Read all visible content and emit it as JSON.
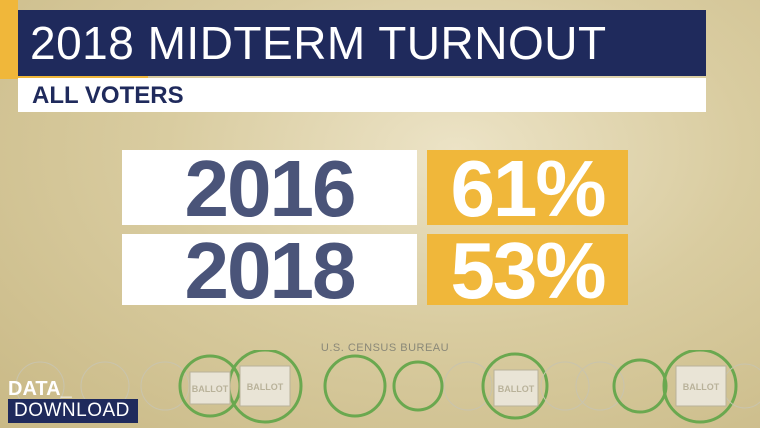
{
  "header": {
    "title": "2018 MIDTERM TURNOUT",
    "subtitle": "ALL VOTERS"
  },
  "table": {
    "rows": [
      [
        "2016",
        "61%"
      ],
      [
        "2018",
        "53%"
      ]
    ]
  },
  "source": "U.S. CENSUS BUREAU",
  "ballot_label": "BALLOT",
  "logo": {
    "top": "DATA_",
    "bottom": "DOWNLOAD"
  }
}
